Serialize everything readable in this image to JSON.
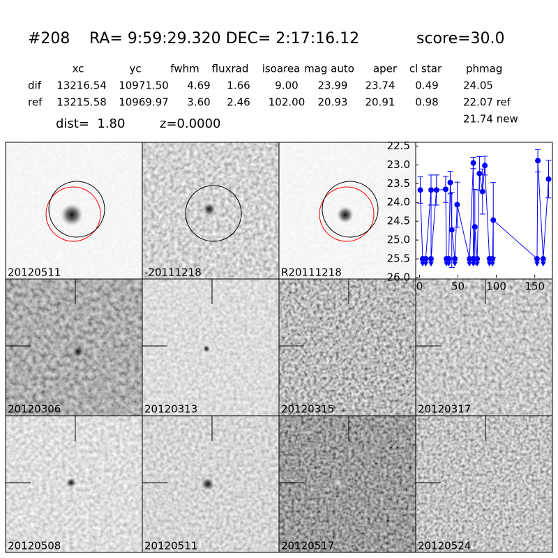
{
  "header": {
    "id": "#208",
    "coords": "RA= 9:59:29.320 DEC= 2:17:16.12",
    "score": "score=30.0"
  },
  "table": {
    "columns": [
      "xc",
      "yc",
      "fwhm",
      "fluxrad",
      "isoarea",
      "mag auto",
      "aper",
      "cl star",
      "phmag"
    ],
    "rows": [
      {
        "label": "dif",
        "cells": [
          "13216.54",
          "10971.50",
          "4.69",
          "1.66",
          "9.00",
          "23.99",
          "23.74",
          "0.49",
          "24.05"
        ]
      },
      {
        "label": "ref",
        "cells": [
          "13215.58",
          "10969.97",
          "3.60",
          "2.46",
          "102.00",
          "20.93",
          "20.91",
          "0.98",
          "22.07 ref"
        ]
      }
    ],
    "extra": "21.74 new"
  },
  "dist": "dist=  1.80",
  "z": "z=0.0000",
  "panels": [
    {
      "label": "20120511"
    },
    {
      "label": "-20111218"
    },
    {
      "label": "R20111218"
    },
    {
      "label": "20120306"
    },
    {
      "label": "20120313"
    },
    {
      "label": "20120315"
    },
    {
      "label": "20120317"
    },
    {
      "label": "20120508"
    },
    {
      "label": "20120511",
      "color": "#ff0000"
    },
    {
      "label": "20120517"
    },
    {
      "label": "20120524"
    }
  ],
  "chart_data": {
    "type": "scatter",
    "color": "#0000ff",
    "detections": {
      "x": [
        1,
        15,
        22,
        34,
        40,
        42,
        49,
        70,
        72,
        78,
        82,
        85,
        96,
        154,
        168
      ],
      "values": [
        23.67,
        23.67,
        23.67,
        23.65,
        23.47,
        24.73,
        24.06,
        22.95,
        24.65,
        23.23,
        23.71,
        23.02,
        24.47,
        22.89,
        23.38
      ],
      "errors": [
        0.35,
        0.4,
        0.4,
        0.35,
        0.3,
        1.0,
        0.6,
        0.15,
        1.0,
        0.45,
        0.6,
        0.25,
        1.0,
        0.3,
        0.5
      ]
    },
    "upper_limits": {
      "x": [
        4,
        8,
        15,
        35,
        38,
        46,
        65,
        70,
        75,
        91,
        95,
        153,
        161
      ],
      "values": [
        25.5,
        25.5,
        25.5,
        25.5,
        25.5,
        25.5,
        25.5,
        25.5,
        25.5,
        25.5,
        25.5,
        25.5,
        25.5
      ]
    },
    "xlim": [
      -5,
      173
    ],
    "ylim": [
      26.0,
      22.4
    ],
    "xticks": [
      0,
      50,
      100,
      150
    ],
    "yticks": [
      22.5,
      {
        "value": 23.0,
        "label": "23.0"
      },
      23.5,
      {
        "value": 24.0,
        "label": "24.0"
      },
      24.5,
      {
        "value": 25.0,
        "label": "25.0"
      },
      25.5,
      {
        "value": 26.0,
        "label": "26.0"
      }
    ]
  }
}
